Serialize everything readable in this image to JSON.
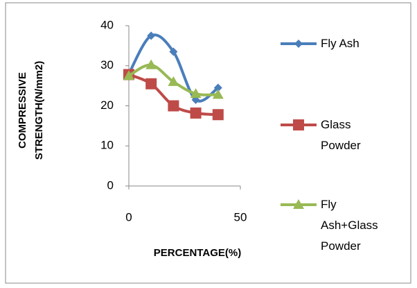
{
  "chart_data": {
    "type": "line",
    "ylabel": "COMPRESSIVE STRENGTH(N/mm2)",
    "xlabel": "PERCENTAGE(%)",
    "x": [
      0,
      10,
      20,
      30,
      40
    ],
    "xlim": [
      0,
      50
    ],
    "xticks": [
      0,
      50
    ],
    "ylim": [
      0,
      40
    ],
    "yticks": [
      0,
      10,
      20,
      30,
      40
    ],
    "smooth": true,
    "legend": "right",
    "series": [
      {
        "name": "Fly Ash",
        "color": "#4a7ebb",
        "marker": "diamond",
        "values": [
          28,
          37.5,
          33.5,
          21.5,
          24.5
        ]
      },
      {
        "name": "Glass Powder",
        "color": "#be4b48",
        "marker": "square",
        "values": [
          27.8,
          25.5,
          20,
          18.2,
          17.8
        ]
      },
      {
        "name": "Fly Ash+Glass Powder",
        "color": "#98b954",
        "marker": "triangle",
        "values": [
          27.5,
          30.2,
          26,
          23,
          22.8
        ]
      }
    ]
  }
}
